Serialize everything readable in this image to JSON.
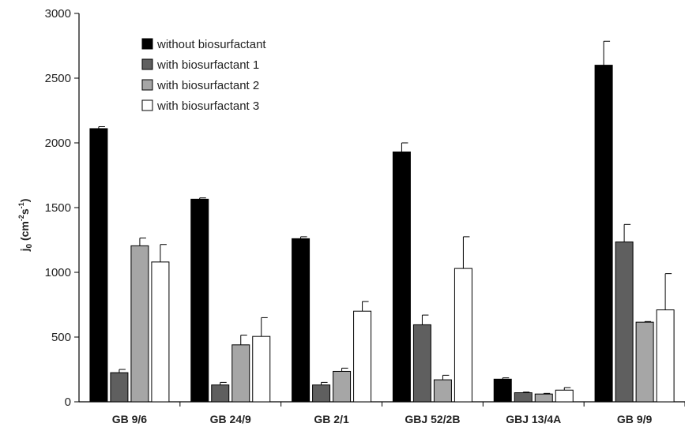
{
  "chart_data": {
    "type": "bar",
    "ylabel_main": "j",
    "ylabel_sub": "0",
    "ylabel_unit_open": " (cm",
    "ylabel_unit_sup1": "-2",
    "ylabel_unit_mid": "s",
    "ylabel_unit_sup2": "-1",
    "ylabel_unit_close": ")",
    "ylim": [
      0,
      3000
    ],
    "yticks": [
      0,
      500,
      1000,
      1500,
      2000,
      2500,
      3000
    ],
    "categories": [
      "GB 9/6",
      "GB 24/9",
      "GB 2/1",
      "GBJ 52/2B",
      "GBJ 13/4A",
      "GB 9/9"
    ],
    "series": [
      {
        "name": "without biosurfactant",
        "color": "#000000",
        "values": [
          2110,
          1565,
          1260,
          1930,
          175,
          2600
        ],
        "errors": [
          15,
          10,
          15,
          70,
          10,
          185
        ]
      },
      {
        "name": "with biosurfactant 1",
        "color": "#5f5f5f",
        "values": [
          225,
          130,
          130,
          595,
          70,
          1235
        ],
        "errors": [
          25,
          20,
          20,
          75,
          5,
          135
        ]
      },
      {
        "name": "with biosurfactant 2",
        "color": "#a6a6a6",
        "values": [
          1205,
          440,
          235,
          170,
          60,
          615
        ],
        "errors": [
          60,
          75,
          25,
          35,
          5,
          5
        ]
      },
      {
        "name": "with biosurfactant 3",
        "color": "#ffffff",
        "values": [
          1080,
          505,
          700,
          1030,
          90,
          710
        ],
        "errors": [
          135,
          145,
          75,
          245,
          20,
          280
        ]
      }
    ],
    "legend_position": "top-left",
    "grid": false
  }
}
